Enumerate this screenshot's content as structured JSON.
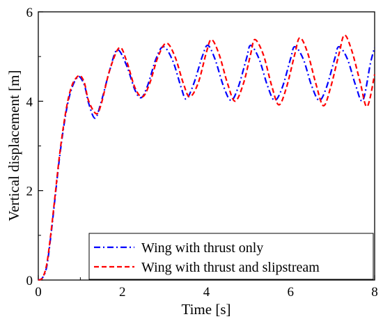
{
  "chart_data": {
    "type": "line",
    "xlabel": "Time [s]",
    "ylabel": "Vertical displacement [m]",
    "xlim": [
      0,
      8
    ],
    "ylim": [
      0,
      6
    ],
    "x_ticks": [
      "0",
      "2",
      "4",
      "6",
      "8"
    ],
    "y_ticks": [
      "0",
      "2",
      "4",
      "6"
    ],
    "grid": false,
    "legend_position": "bottom-right",
    "series": [
      {
        "name": "Wing with thrust only",
        "color": "#0000ff",
        "style": "dash-dot",
        "x": [
          0,
          0.1,
          0.2,
          0.3,
          0.4,
          0.5,
          0.6,
          0.7,
          0.8,
          0.9,
          0.98,
          1.1,
          1.2,
          1.35,
          1.5,
          1.7,
          1.88,
          2.1,
          2.3,
          2.45,
          2.6,
          2.8,
          2.98,
          3.2,
          3.4,
          3.52,
          3.7,
          3.9,
          4.03,
          4.2,
          4.4,
          4.58,
          4.75,
          4.95,
          5.05,
          5.25,
          5.45,
          5.62,
          5.8,
          6.0,
          6.1,
          6.3,
          6.5,
          6.68,
          6.85,
          7.05,
          7.15,
          7.35,
          7.55,
          7.72,
          7.9,
          8.0
        ],
        "y": [
          0.0,
          0.05,
          0.3,
          1.0,
          1.85,
          2.7,
          3.4,
          3.95,
          4.3,
          4.5,
          4.55,
          4.35,
          3.95,
          3.62,
          4.0,
          4.7,
          5.15,
          4.8,
          4.25,
          4.08,
          4.35,
          4.95,
          5.22,
          4.9,
          4.3,
          4.05,
          4.4,
          5.0,
          5.25,
          4.95,
          4.35,
          4.02,
          4.3,
          4.95,
          5.25,
          4.95,
          4.35,
          4.02,
          4.3,
          4.95,
          5.22,
          4.95,
          4.35,
          4.02,
          4.3,
          4.95,
          5.22,
          4.95,
          4.35,
          4.02,
          4.85,
          5.2
        ]
      },
      {
        "name": "Wing with thrust and slipstream",
        "color": "#ff0000",
        "style": "dashed",
        "x": [
          0,
          0.1,
          0.2,
          0.3,
          0.4,
          0.5,
          0.6,
          0.7,
          0.8,
          0.9,
          1.0,
          1.1,
          1.2,
          1.38,
          1.5,
          1.7,
          1.93,
          2.1,
          2.3,
          2.48,
          2.65,
          2.85,
          3.05,
          3.25,
          3.45,
          3.6,
          3.8,
          4.0,
          4.12,
          4.3,
          4.5,
          4.68,
          4.88,
          5.05,
          5.15,
          5.35,
          5.55,
          5.72,
          5.9,
          6.1,
          6.22,
          6.4,
          6.6,
          6.78,
          6.95,
          7.15,
          7.28,
          7.45,
          7.65,
          7.82,
          8.0
        ],
        "y": [
          0.0,
          0.05,
          0.35,
          1.05,
          1.9,
          2.75,
          3.45,
          4.0,
          4.35,
          4.52,
          4.57,
          4.4,
          4.0,
          3.72,
          3.95,
          4.7,
          5.2,
          4.9,
          4.3,
          4.1,
          4.4,
          5.0,
          5.3,
          5.0,
          4.4,
          4.1,
          4.4,
          5.1,
          5.38,
          5.05,
          4.4,
          4.0,
          4.4,
          5.05,
          5.38,
          5.05,
          4.35,
          3.92,
          4.3,
          5.05,
          5.42,
          5.1,
          4.4,
          3.9,
          4.3,
          5.05,
          5.48,
          5.15,
          4.45,
          3.88,
          4.6
        ]
      }
    ]
  }
}
